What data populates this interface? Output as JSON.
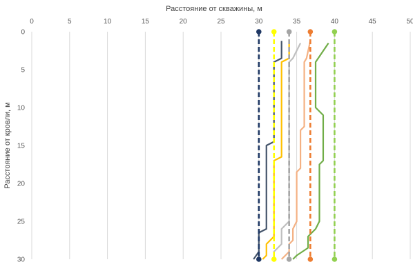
{
  "chart_data": {
    "type": "line",
    "xlabel": "Расстояние от скважины, м",
    "ylabel": "Расстояние от кровли, м",
    "xlim": [
      0,
      50
    ],
    "ylim": [
      0,
      30
    ],
    "y_inverted": true,
    "x_axis_position": "top",
    "grid": "vertical",
    "x_ticks": [
      0,
      5,
      10,
      15,
      20,
      25,
      30,
      35,
      40,
      45,
      50
    ],
    "y_ticks": [
      0,
      5,
      10,
      15,
      20,
      25,
      30
    ],
    "legend": "none",
    "series": [
      {
        "color": "#1f3864",
        "style": "dashed",
        "markers": true,
        "points": [
          [
            30,
            0
          ],
          [
            30,
            30
          ]
        ]
      },
      {
        "color": "#ffff00",
        "style": "dashed",
        "markers": true,
        "points": [
          [
            32,
            0
          ],
          [
            32,
            30
          ]
        ]
      },
      {
        "color": "#a5a5a5",
        "style": "dashed",
        "markers": true,
        "points": [
          [
            34,
            0
          ],
          [
            34,
            30
          ]
        ]
      },
      {
        "color": "#ed7d31",
        "style": "dashed",
        "markers": true,
        "points": [
          [
            36.8,
            0
          ],
          [
            36.8,
            30
          ]
        ]
      },
      {
        "color": "#92d050",
        "style": "dashed",
        "markers": true,
        "points": [
          [
            40,
            0
          ],
          [
            40,
            30
          ]
        ]
      },
      {
        "color": "#44546a",
        "style": "solid",
        "markers": false,
        "points": [
          [
            33,
            1.2
          ],
          [
            33,
            3.5
          ],
          [
            32,
            4
          ],
          [
            32,
            14.5
          ],
          [
            31,
            15
          ],
          [
            31,
            26
          ],
          [
            30,
            26.5
          ],
          [
            30,
            29
          ],
          [
            29.3,
            30
          ]
        ]
      },
      {
        "color": "#ffc000",
        "style": "solid",
        "markers": false,
        "points": [
          [
            34,
            1.2
          ],
          [
            34,
            3.5
          ],
          [
            33,
            4
          ],
          [
            33,
            16.5
          ],
          [
            32,
            17
          ],
          [
            32,
            27
          ],
          [
            31,
            28
          ],
          [
            31,
            29.5
          ],
          [
            30.5,
            30
          ]
        ]
      },
      {
        "color": "#bfbfbf",
        "style": "solid",
        "markers": false,
        "points": [
          [
            35.5,
            1.5
          ],
          [
            34.5,
            3.5
          ],
          [
            34,
            4
          ],
          [
            34,
            12.5
          ],
          [
            34,
            25
          ],
          [
            33,
            26
          ],
          [
            33,
            28
          ],
          [
            32,
            29
          ],
          [
            32,
            30
          ]
        ]
      },
      {
        "color": "#f4b183",
        "style": "solid",
        "markers": false,
        "points": [
          [
            36.8,
            1.2
          ],
          [
            36.3,
            3.5
          ],
          [
            36,
            4
          ],
          [
            36,
            12.5
          ],
          [
            35.5,
            13
          ],
          [
            35.5,
            18
          ],
          [
            35,
            18.5
          ],
          [
            35,
            25
          ],
          [
            34.5,
            26
          ],
          [
            34.5,
            27.5
          ],
          [
            34,
            28
          ],
          [
            34,
            29
          ],
          [
            33,
            30
          ]
        ]
      },
      {
        "color": "#70ad47",
        "style": "solid",
        "markers": false,
        "points": [
          [
            39.2,
            1.5
          ],
          [
            37.5,
            4
          ],
          [
            37.5,
            10
          ],
          [
            38,
            10.5
          ],
          [
            38.5,
            11
          ],
          [
            38.5,
            17
          ],
          [
            38,
            17.5
          ],
          [
            38,
            25
          ],
          [
            37.5,
            26
          ],
          [
            36.5,
            27
          ],
          [
            36.5,
            28.5
          ],
          [
            35,
            29.5
          ],
          [
            34.5,
            30
          ]
        ]
      }
    ]
  }
}
